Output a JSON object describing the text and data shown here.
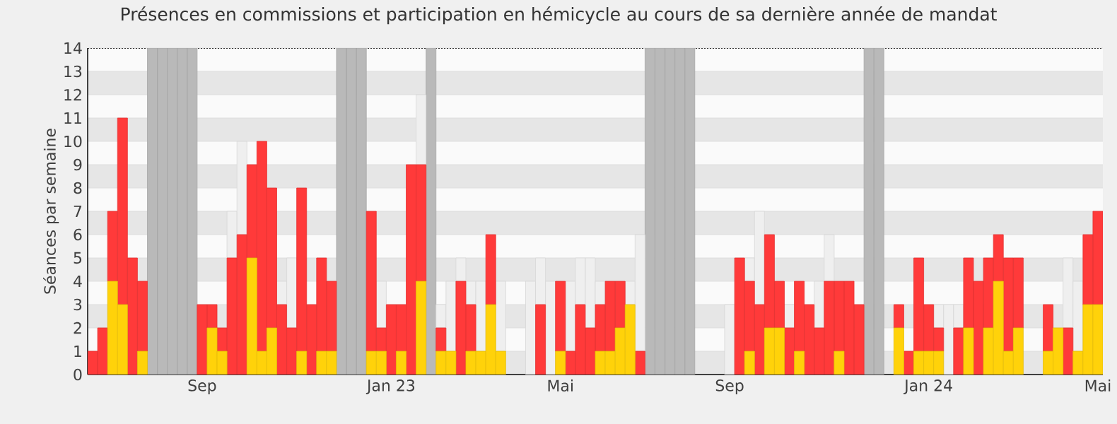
{
  "chart_data": {
    "type": "bar",
    "title": "Présences en commissions et participation en hémicycle au cours de sa dernière année de mandat",
    "ylabel": "Séances par semaine",
    "categories": [
      null,
      null,
      null,
      null,
      null,
      null,
      null,
      null,
      null,
      null,
      null,
      "Sep",
      null,
      null,
      null,
      null,
      null,
      null,
      null,
      null,
      null,
      null,
      null,
      null,
      null,
      null,
      null,
      null,
      null,
      null,
      "Jan 23",
      null,
      null,
      null,
      null,
      null,
      null,
      null,
      null,
      null,
      null,
      null,
      null,
      null,
      null,
      null,
      null,
      "Mai",
      null,
      null,
      null,
      null,
      null,
      null,
      null,
      null,
      null,
      null,
      null,
      null,
      null,
      null,
      null,
      null,
      "Sep",
      null,
      null,
      null,
      null,
      null,
      null,
      null,
      null,
      null,
      null,
      null,
      null,
      null,
      null,
      null,
      null,
      null,
      null,
      null,
      "Jan 24",
      null,
      null,
      null,
      null,
      null,
      null,
      null,
      null,
      null,
      null,
      null,
      null,
      null,
      null,
      null,
      null,
      "Mai"
    ],
    "stacked": true,
    "series": [
      {
        "color": "#ffd20a",
        "values": [
          0,
          0,
          4,
          3,
          0,
          1,
          0,
          0,
          0,
          0,
          0,
          0,
          2,
          1,
          0,
          0,
          5,
          1,
          2,
          0,
          0,
          1,
          0,
          1,
          1,
          0,
          0,
          0,
          1,
          1,
          0,
          1,
          0,
          4,
          0,
          1,
          1,
          0,
          1,
          1,
          3,
          1,
          0,
          0,
          0,
          0,
          0,
          1,
          0,
          0,
          0,
          1,
          1,
          2,
          3,
          0,
          0,
          0,
          0,
          0,
          0,
          0,
          0,
          0,
          0,
          0,
          1,
          0,
          2,
          2,
          0,
          1,
          0,
          0,
          0,
          1,
          0,
          0,
          0,
          0,
          0,
          2,
          0,
          1,
          1,
          1,
          0,
          0,
          2,
          0,
          2,
          4,
          1,
          2,
          0,
          0,
          1,
          2,
          0,
          1,
          3,
          3
        ]
      },
      {
        "color": "#ff3a3a",
        "values": [
          1,
          2,
          3,
          8,
          5,
          3,
          0,
          0,
          0,
          0,
          0,
          3,
          1,
          1,
          5,
          6,
          4,
          9,
          6,
          3,
          2,
          7,
          3,
          4,
          3,
          0,
          0,
          0,
          6,
          1,
          3,
          2,
          9,
          5,
          0,
          1,
          0,
          4,
          2,
          0,
          3,
          0,
          0,
          0,
          0,
          3,
          0,
          3,
          1,
          3,
          2,
          2,
          3,
          2,
          0,
          1,
          0,
          0,
          0,
          0,
          0,
          0,
          0,
          0,
          0,
          5,
          3,
          3,
          4,
          2,
          2,
          3,
          3,
          2,
          4,
          3,
          4,
          3,
          0,
          0,
          0,
          1,
          1,
          4,
          2,
          1,
          0,
          2,
          3,
          4,
          3,
          2,
          4,
          3,
          0,
          0,
          2,
          0,
          2,
          0,
          3,
          4
        ]
      },
      {
        "color": "#efefef",
        "values": [
          null,
          null,
          null,
          null,
          null,
          null,
          null,
          null,
          null,
          null,
          null,
          null,
          null,
          null,
          2,
          4,
          null,
          null,
          null,
          1,
          3,
          null,
          null,
          null,
          null,
          null,
          null,
          null,
          null,
          2,
          null,
          null,
          null,
          3,
          null,
          1,
          3,
          1,
          1,
          3,
          null,
          3,
          null,
          null,
          4,
          2,
          4,
          null,
          3,
          2,
          3,
          1,
          null,
          null,
          1,
          5,
          null,
          null,
          null,
          null,
          null,
          null,
          null,
          null,
          3,
          null,
          1,
          4,
          null,
          null,
          1,
          null,
          null,
          2,
          2,
          null,
          null,
          null,
          null,
          null,
          null,
          null,
          null,
          null,
          null,
          1,
          3,
          1,
          null,
          null,
          null,
          null,
          null,
          null,
          null,
          null,
          null,
          null,
          3,
          3,
          null,
          null
        ]
      },
      {
        "color": "#b9b9b9",
        "values": [
          null,
          null,
          null,
          null,
          null,
          null,
          14,
          14,
          14,
          14,
          14,
          null,
          null,
          null,
          null,
          null,
          null,
          null,
          null,
          null,
          null,
          null,
          null,
          null,
          null,
          14,
          14,
          14,
          null,
          null,
          null,
          null,
          null,
          null,
          14,
          null,
          null,
          null,
          null,
          null,
          null,
          null,
          null,
          null,
          null,
          null,
          null,
          null,
          null,
          null,
          null,
          null,
          null,
          null,
          null,
          null,
          14,
          14,
          14,
          14,
          14,
          null,
          null,
          null,
          null,
          null,
          null,
          null,
          null,
          null,
          null,
          null,
          null,
          null,
          null,
          null,
          null,
          null,
          14,
          14,
          null,
          null,
          null,
          null,
          null,
          null,
          null,
          null,
          null,
          null,
          null,
          null,
          null,
          null,
          null,
          null,
          null,
          null,
          null,
          null,
          null,
          null
        ]
      }
    ],
    "ylim": [
      0,
      14
    ],
    "yticks": [
      0,
      1,
      2,
      3,
      4,
      5,
      6,
      7,
      8,
      9,
      10,
      11,
      12,
      13,
      14
    ],
    "grid": "y"
  }
}
